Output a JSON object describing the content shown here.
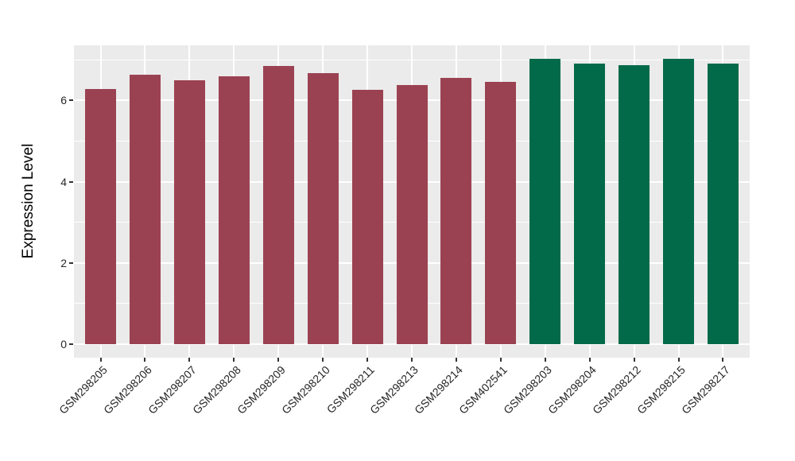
{
  "chart_data": {
    "type": "bar",
    "title": "",
    "xlabel": "",
    "ylabel": "Expression Level",
    "categories": [
      "GSM298205",
      "GSM298206",
      "GSM298207",
      "GSM298208",
      "GSM298209",
      "GSM298210",
      "GSM298211",
      "GSM298213",
      "GSM298214",
      "GSM402541",
      "GSM298203",
      "GSM298204",
      "GSM298212",
      "GSM298215",
      "GSM298217"
    ],
    "values": [
      6.28,
      6.63,
      6.5,
      6.6,
      6.85,
      6.67,
      6.26,
      6.37,
      6.56,
      6.46,
      7.02,
      6.91,
      6.87,
      7.03,
      6.9
    ],
    "bar_colors": [
      "#9B4252",
      "#9B4252",
      "#9B4252",
      "#9B4252",
      "#9B4252",
      "#9B4252",
      "#9B4252",
      "#9B4252",
      "#9B4252",
      "#9B4252",
      "#036A49",
      "#036A49",
      "#036A49",
      "#036A49",
      "#036A49"
    ],
    "group_colors": {
      "group1": "#9B4252",
      "group2": "#036A49"
    },
    "ytick_labels": [
      "0",
      "2",
      "4",
      "6"
    ],
    "yticks": [
      0,
      2,
      4,
      6
    ],
    "minor_yticks": [
      1,
      3,
      5,
      7
    ],
    "ylim": [
      -0.37,
      7.33
    ],
    "x_tick_rotation_deg": -45,
    "grid": "major and minor white gridlines on gray panel",
    "legend": "none",
    "panel_background": "#EBEBEB",
    "grid_color": "#FFFFFF",
    "axis_text_color": "#262626",
    "tick_mark_color": "#333333"
  }
}
